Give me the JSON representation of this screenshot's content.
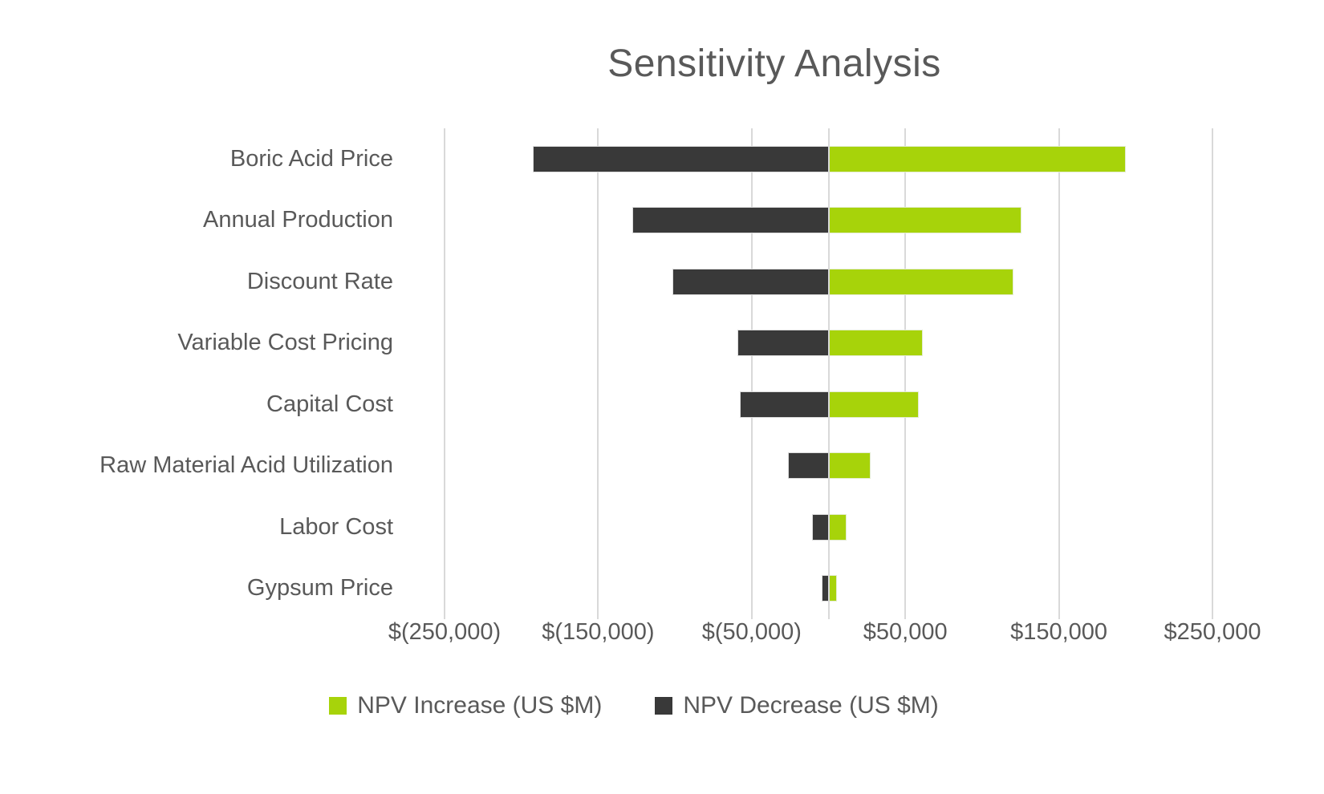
{
  "title": "Sensitivity Analysis",
  "legend": [
    {
      "label": "NPV Increase (US $M)",
      "swatch": "increase-swatch",
      "color": "#a7d30a"
    },
    {
      "label": "NPV Decrease (US $M)",
      "swatch": "decrease-swatch",
      "color": "#393939"
    }
  ],
  "colors": {
    "increase": "#a7d30a",
    "decrease": "#393939",
    "text": "#595959",
    "gridline": "#d9d9d9",
    "background": "#ffffff"
  },
  "chart_data": {
    "type": "bar",
    "orientation": "horizontal-tornado",
    "title": "Sensitivity Analysis",
    "categories": [
      "Boric Acid Price",
      "Annual Production",
      "Discount Rate",
      "Variable Cost Pricing",
      "Capital Cost",
      "Raw Material Acid Utilization",
      "Labor Cost",
      "Gypsum Price"
    ],
    "series": [
      {
        "name": "NPV Increase (US $M)",
        "color": "#a7d30a",
        "values": [
          193000,
          125000,
          120000,
          61000,
          58000,
          27000,
          11000,
          5000
        ]
      },
      {
        "name": "NPV Decrease (US $M)",
        "color": "#393939",
        "values": [
          -192000,
          -127000,
          -101000,
          -59000,
          -57000,
          -26000,
          -10000,
          -4000
        ]
      }
    ],
    "xlabel": "",
    "ylabel": "",
    "xlim": [
      -250000,
      250000
    ],
    "x_tick_values": [
      -250000,
      -150000,
      -50000,
      50000,
      150000,
      250000
    ],
    "x_tick_labels": [
      "$(250,000)",
      "$(150,000)",
      "$(50,000)",
      "$50,000",
      "$150,000",
      "$250,000"
    ],
    "gridline_values": [
      -250000,
      -150000,
      -50000,
      50000,
      150000,
      250000
    ],
    "zero_axis": 0,
    "grid": true,
    "legend_position": "bottom"
  }
}
